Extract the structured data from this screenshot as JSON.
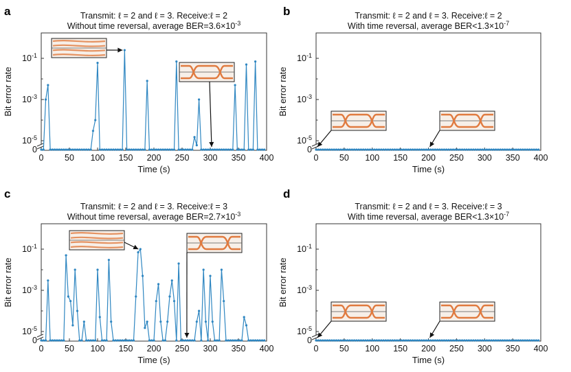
{
  "chart_data": [
    {
      "type": "line",
      "panel_label": "a",
      "title_line1": "Transmit: ℓ = 2 and ℓ = 3. Receive:ℓ = 2",
      "title_line2": "Without time reversal, average BER=3.6×10⁻³",
      "xlabel": "Time (s)",
      "ylabel": "Bit error rate",
      "xlim": [
        0,
        400
      ],
      "yscale": "log with break to zero",
      "ylim": [
        1e-06,
        1
      ],
      "xticks": [
        "0",
        "50",
        "100",
        "150",
        "200",
        "250",
        "300",
        "350",
        "400"
      ],
      "yticks": [
        "10⁻¹",
        "10⁻³",
        "10⁻⁵",
        "0"
      ],
      "series_color": "#2e86c1",
      "sample_step": 4,
      "nonzero_points": [
        [
          8,
          0.001
        ],
        [
          12,
          0.005
        ],
        [
          92,
          3e-05
        ],
        [
          96,
          0.0001
        ],
        [
          100,
          0.06
        ],
        [
          148,
          0.25
        ],
        [
          188,
          0.008
        ],
        [
          240,
          0.07
        ],
        [
          272,
          1.5e-05
        ],
        [
          276,
          6e-06
        ],
        [
          280,
          0.001
        ],
        [
          344,
          0.005
        ],
        [
          364,
          0.05
        ],
        [
          380,
          0.07
        ]
      ],
      "insets": [
        {
          "eye_state": "closed",
          "arrow_to": [
            148,
            0.25
          ]
        },
        {
          "eye_state": "open",
          "arrow_to": [
            300,
            0
          ]
        }
      ]
    },
    {
      "type": "line",
      "panel_label": "b",
      "title_line1": "Transmit: ℓ = 2 and ℓ = 3. Receive:ℓ = 2",
      "title_line2": "With time reversal, average BER<1.3×10⁻⁷",
      "xlabel": "Time (s)",
      "ylabel": "Bit error rate",
      "xlim": [
        0,
        400
      ],
      "yscale": "log with break to zero",
      "ylim": [
        1e-06,
        1
      ],
      "xticks": [
        "0",
        "50",
        "100",
        "150",
        "200",
        "250",
        "300",
        "350",
        "400"
      ],
      "yticks": [
        "10⁻¹",
        "10⁻³",
        "10⁻⁵",
        "0"
      ],
      "series_color": "#2e86c1",
      "sample_step": 4,
      "nonzero_points": [],
      "insets": [
        {
          "eye_state": "open",
          "arrow_to": [
            0,
            0
          ]
        },
        {
          "eye_state": "open",
          "arrow_to": [
            200,
            0
          ]
        }
      ]
    },
    {
      "type": "line",
      "panel_label": "c",
      "title_line1": "Transmit: ℓ = 2 and ℓ = 3. Receive:ℓ = 3",
      "title_line2": "Without time reversal, average BER=2.7×10⁻³",
      "xlabel": "Time (s)",
      "ylabel": "Bit error rate",
      "xlim": [
        0,
        400
      ],
      "yscale": "log with break to zero",
      "ylim": [
        1e-06,
        1
      ],
      "xticks": [
        "0",
        "50",
        "100",
        "150",
        "200",
        "250",
        "300",
        "350",
        "400"
      ],
      "yticks": [
        "10⁻¹",
        "10⁻³",
        "10⁻⁵",
        "0"
      ],
      "series_color": "#2e86c1",
      "sample_step": 4,
      "nonzero_points": [
        [
          12,
          0.003
        ],
        [
          44,
          0.05
        ],
        [
          48,
          0.0005
        ],
        [
          52,
          0.0003
        ],
        [
          56,
          2e-05
        ],
        [
          60,
          0.01
        ],
        [
          64,
          0.0001
        ],
        [
          76,
          3e-05
        ],
        [
          100,
          0.01
        ],
        [
          104,
          5e-05
        ],
        [
          120,
          0.03
        ],
        [
          124,
          3e-05
        ],
        [
          168,
          0.0005
        ],
        [
          172,
          0.07
        ],
        [
          176,
          0.1
        ],
        [
          180,
          0.005
        ],
        [
          184,
          1.5e-05
        ],
        [
          188,
          3e-05
        ],
        [
          204,
          0.0003
        ],
        [
          208,
          0.002
        ],
        [
          212,
          3e-05
        ],
        [
          224,
          3e-05
        ],
        [
          228,
          0.0005
        ],
        [
          232,
          0.003
        ],
        [
          236,
          0.0003
        ],
        [
          244,
          0.02
        ],
        [
          276,
          3e-05
        ],
        [
          280,
          0.0001
        ],
        [
          288,
          0.01
        ],
        [
          292,
          3e-05
        ],
        [
          300,
          0.005
        ],
        [
          304,
          3e-05
        ],
        [
          320,
          0.01
        ],
        [
          324,
          0.0003
        ],
        [
          360,
          5e-05
        ],
        [
          364,
          2e-05
        ]
      ],
      "insets": [
        {
          "eye_state": "closed",
          "arrow_to": [
            176,
            0.1
          ]
        },
        {
          "eye_state": "open",
          "arrow_to": [
            256,
            0
          ]
        }
      ]
    },
    {
      "type": "line",
      "panel_label": "d",
      "title_line1": "Transmit: ℓ = 2 and ℓ = 3. Receive:ℓ = 3",
      "title_line2": "With time reversal, average BER<1.3×10⁻⁷",
      "xlabel": "Time (s)",
      "ylabel": "Bit error rate",
      "xlim": [
        0,
        400
      ],
      "yscale": "log with break to zero",
      "ylim": [
        1e-06,
        1
      ],
      "xticks": [
        "0",
        "50",
        "100",
        "150",
        "200",
        "250",
        "300",
        "350",
        "400"
      ],
      "yticks": [
        "10⁻¹",
        "10⁻³",
        "10⁻⁵",
        "0"
      ],
      "series_color": "#2e86c1",
      "sample_step": 4,
      "nonzero_points": [],
      "insets": [
        {
          "eye_state": "open",
          "arrow_to": [
            0,
            0
          ]
        },
        {
          "eye_state": "open",
          "arrow_to": [
            200,
            0
          ]
        }
      ]
    }
  ]
}
